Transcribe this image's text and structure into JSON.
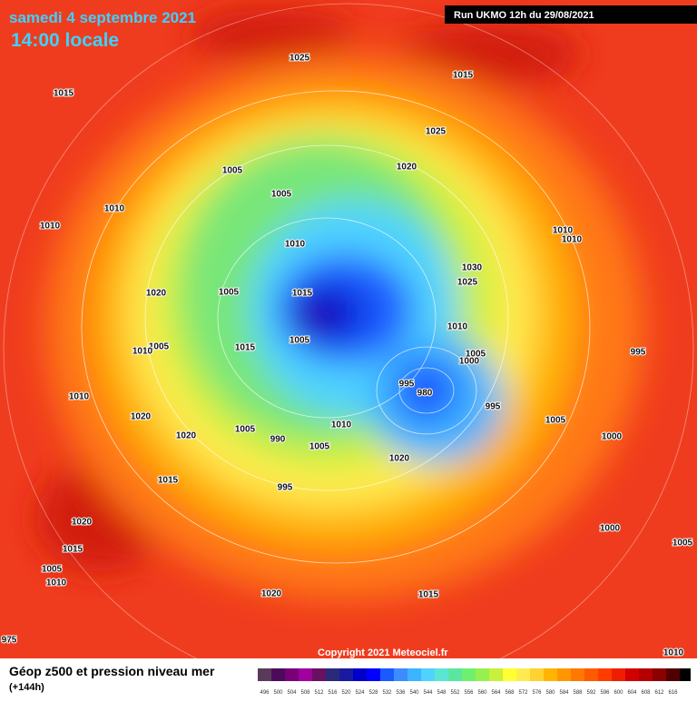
{
  "header": {
    "date": "samedi 4 septembre 2021",
    "time": "14:00 locale",
    "run": "Run UKMO 12h du 29/08/2021"
  },
  "copyright": "Copyright 2021 Meteociel.fr",
  "legend": {
    "title": "Géop z500 et pression niveau mer",
    "lead": "(+144h)",
    "levels": [
      496,
      500,
      504,
      508,
      512,
      516,
      520,
      524,
      528,
      532,
      536,
      540,
      544,
      548,
      552,
      556,
      560,
      564,
      568,
      572,
      576,
      580,
      584,
      588,
      592,
      596,
      600,
      604,
      608,
      612,
      616
    ],
    "colors": [
      "#5a3a5a",
      "#4b0b5b",
      "#7a007a",
      "#a000a0",
      "#6a1060",
      "#2a2a7a",
      "#1a1aa0",
      "#0000c8",
      "#0000ff",
      "#1a5aff",
      "#3c8cff",
      "#3cb4ff",
      "#50d2ff",
      "#5ae6d2",
      "#5ae6a0",
      "#6ef06e",
      "#96f050",
      "#c8f03c",
      "#ffff32",
      "#ffeb50",
      "#ffd232",
      "#ffb400",
      "#ff9600",
      "#ff7800",
      "#ff5a00",
      "#ff3c00",
      "#f01e00",
      "#d20000",
      "#b40000",
      "#8c0000",
      "#500000"
    ]
  },
  "isobar_labels": [
    1025,
    1015,
    1015,
    1025,
    1020,
    1005,
    1005,
    1010,
    1010,
    1010,
    1010,
    1010,
    1030,
    1025,
    1020,
    1005,
    1015,
    1005,
    1010,
    1015,
    1005,
    1010,
    1005,
    1000,
    995,
    995,
    980,
    1010,
    995,
    1020,
    1010,
    1005,
    1005,
    1020,
    990,
    1000,
    1005,
    1020,
    1015,
    995,
    1020,
    1000,
    1015,
    1005,
    1005,
    1010,
    1020,
    1015,
    1010,
    975
  ]
}
